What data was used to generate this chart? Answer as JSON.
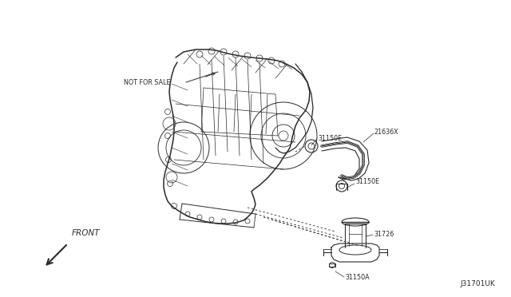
{
  "bg_color": "#ffffff",
  "line_color": "#2a2a2a",
  "text_color": "#2a2a2a",
  "label_color": "#444444",
  "fig_width": 6.4,
  "fig_height": 3.72,
  "dpi": 100,
  "labels": {
    "not_for_sale": "NOT FOR SALE",
    "part_21636x": "21636X",
    "part_31150e_top": "31150E",
    "part_31150e_mid": "31150E",
    "part_31726": "31726",
    "part_31150a": "31150A",
    "front": "FRONT",
    "diagram_id": "J31701UK"
  },
  "font_size_label": 5.8,
  "font_size_diagram_id": 6.5
}
